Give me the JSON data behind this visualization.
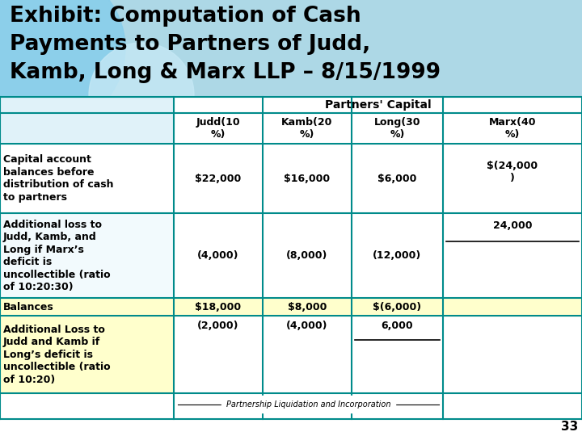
{
  "title_line1": "Exhibit: Computation of Cash",
  "title_line2": "Payments to Partners of Judd,",
  "title_line3": "Kamb, Long & Marx LLP – 8/15/1999",
  "title_bg": "#ADD8E6",
  "circle1_color": "#87CEEB",
  "circle2_color": "#C5E8F5",
  "table_border_color": "#008B8B",
  "col_header_text": "Partners' Capital",
  "col_labels": [
    "Judd(10\n%)",
    "Kamb(20\n%)",
    "Long(30\n%)",
    "Marx(40\n%)"
  ],
  "row0_label": "Capital account\nbalances before\ndistribution of cash\nto partners",
  "row0_vals": [
    "$22,000",
    "$16,000",
    "$6,000",
    "$(24,000\n)"
  ],
  "row1_label": "Additional loss to\nJudd, Kamb, and\nLong if Marx’s\ndeficit is\nuncollectible (ratio\nof 10:20:30)",
  "row1_vals": [
    "(4,000)",
    "(8,000)",
    "(12,000)",
    "24,000"
  ],
  "row2_label": "Balances",
  "row2_vals": [
    "$18,000",
    "$8,000",
    "$(6,000)",
    ""
  ],
  "row3_label": "Additional Loss to\nJudd and Kamb if\nLong’s deficit is\nuncollectible (ratio\nof 10:20)",
  "row3_vals": [
    "(2,000)",
    "(4,000)",
    "6,000",
    ""
  ],
  "footer_text": "Partnership Liquidation and Incorporation",
  "page_num": "33",
  "bg_white": "#FFFFFF",
  "bg_yellow": "#FFFFCC",
  "bg_blue_desc": "#C8E8F5",
  "text_black": "#000000"
}
